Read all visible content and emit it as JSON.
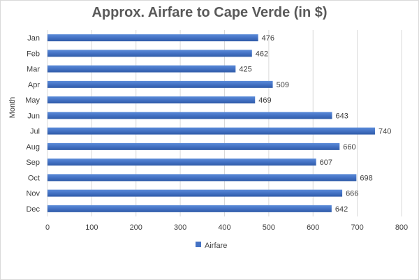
{
  "chart_data": {
    "type": "bar",
    "orientation": "horizontal",
    "title": "Approx. Airfare to Cape Verde (in $)",
    "ylabel": "Month",
    "xlabel": "",
    "categories": [
      "Jan",
      "Feb",
      "Mar",
      "Apr",
      "May",
      "Jun",
      "Jul",
      "Aug",
      "Sep",
      "Oct",
      "Nov",
      "Dec"
    ],
    "series": [
      {
        "name": "Airfare",
        "values": [
          476,
          462,
          425,
          509,
          469,
          643,
          740,
          660,
          607,
          698,
          666,
          642
        ],
        "color": "#4472c4"
      }
    ],
    "xlim": [
      0,
      800
    ],
    "xticks": [
      0,
      100,
      200,
      300,
      400,
      500,
      600,
      700,
      800
    ],
    "grid": true,
    "legend": "bottom",
    "data_labels": true
  }
}
